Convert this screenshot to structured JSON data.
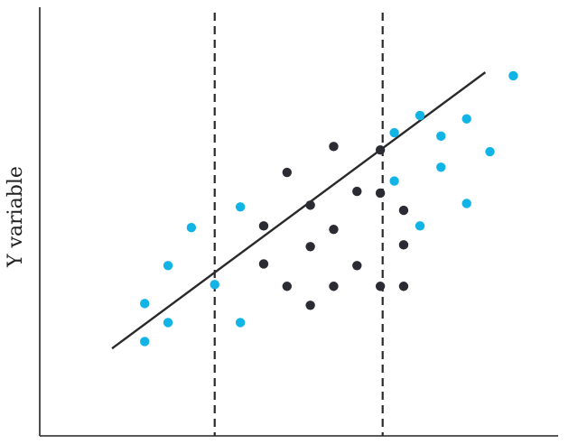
{
  "chart_data": {
    "type": "scatter",
    "title": "",
    "xlabel": "",
    "ylabel": "Y variable",
    "xlim": [
      0,
      100
    ],
    "ylim": [
      0,
      100
    ],
    "grid": false,
    "colors": {
      "outer": "#12b4e6",
      "middle": "#2b2b33",
      "line": "#2a2a2a",
      "axis": "#222222"
    },
    "dividers": [
      37.5,
      73.5
    ],
    "fit_line": {
      "x": [
        15.5,
        95.5
      ],
      "y": [
        12,
        92
      ]
    },
    "series": [
      {
        "group": "outer",
        "points": [
          [
            22.5,
            14
          ],
          [
            22.5,
            25
          ],
          [
            27.5,
            19.5
          ],
          [
            27.5,
            36
          ],
          [
            32.5,
            47
          ],
          [
            37.5,
            30.5
          ],
          [
            43,
            19.5
          ],
          [
            43,
            53
          ],
          [
            76,
            60.5
          ],
          [
            76,
            74.5
          ],
          [
            81.5,
            47.5
          ],
          [
            81.5,
            79.5
          ],
          [
            86,
            73.5
          ],
          [
            86,
            64.5
          ],
          [
            91.5,
            54
          ],
          [
            91.5,
            78.5
          ],
          [
            96.5,
            69
          ],
          [
            101.5,
            91
          ]
        ]
      },
      {
        "group": "middle",
        "points": [
          [
            48,
            47.5
          ],
          [
            48,
            36.5
          ],
          [
            53,
            63
          ],
          [
            53,
            30
          ],
          [
            58,
            53.5
          ],
          [
            58,
            41.5
          ],
          [
            58,
            24.5
          ],
          [
            63,
            30
          ],
          [
            63,
            70.5
          ],
          [
            63,
            46.5
          ],
          [
            68,
            57.5
          ],
          [
            68,
            36
          ],
          [
            73,
            69.5
          ],
          [
            73,
            57
          ],
          [
            73,
            30
          ],
          [
            78,
            52
          ],
          [
            78,
            42
          ],
          [
            78,
            30
          ]
        ]
      }
    ]
  }
}
